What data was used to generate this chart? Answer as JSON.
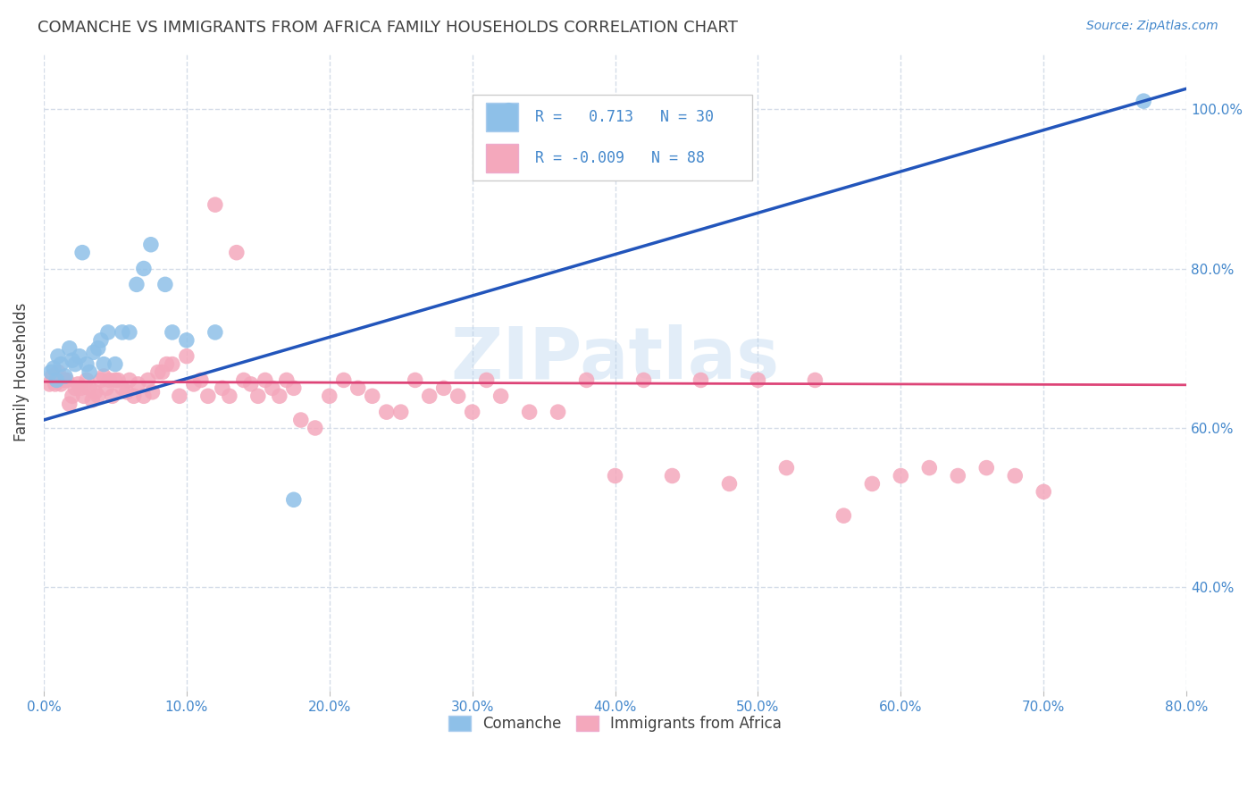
{
  "title": "COMANCHE VS IMMIGRANTS FROM AFRICA FAMILY HOUSEHOLDS CORRELATION CHART",
  "source": "Source: ZipAtlas.com",
  "ylabel": "Family Households",
  "xlim": [
    0.0,
    0.8
  ],
  "ylim": [
    0.27,
    1.07
  ],
  "blue_R": 0.713,
  "blue_N": 30,
  "pink_R": -0.009,
  "pink_N": 88,
  "blue_color": "#8ec0e8",
  "pink_color": "#f4a8bc",
  "blue_line_color": "#2255bb",
  "pink_line_color": "#dd4477",
  "watermark_color": "#b8d4ee",
  "title_color": "#404040",
  "axis_color": "#4488cc",
  "background_color": "#ffffff",
  "grid_color": "#d4dce8",
  "blue_points_x": [
    0.005,
    0.007,
    0.009,
    0.01,
    0.012,
    0.015,
    0.018,
    0.02,
    0.022,
    0.025,
    0.027,
    0.03,
    0.032,
    0.035,
    0.038,
    0.04,
    0.042,
    0.045,
    0.05,
    0.055,
    0.06,
    0.065,
    0.07,
    0.075,
    0.085,
    0.09,
    0.1,
    0.12,
    0.175,
    0.77
  ],
  "blue_points_y": [
    0.67,
    0.675,
    0.66,
    0.69,
    0.68,
    0.665,
    0.7,
    0.685,
    0.68,
    0.69,
    0.82,
    0.68,
    0.67,
    0.695,
    0.7,
    0.71,
    0.68,
    0.72,
    0.68,
    0.72,
    0.72,
    0.78,
    0.8,
    0.83,
    0.78,
    0.72,
    0.71,
    0.72,
    0.51,
    1.01
  ],
  "pink_points_x": [
    0.004,
    0.006,
    0.008,
    0.01,
    0.012,
    0.014,
    0.016,
    0.018,
    0.02,
    0.022,
    0.024,
    0.026,
    0.028,
    0.03,
    0.032,
    0.034,
    0.036,
    0.038,
    0.04,
    0.042,
    0.044,
    0.046,
    0.048,
    0.05,
    0.052,
    0.055,
    0.058,
    0.06,
    0.063,
    0.066,
    0.07,
    0.073,
    0.076,
    0.08,
    0.083,
    0.086,
    0.09,
    0.095,
    0.1,
    0.105,
    0.11,
    0.115,
    0.12,
    0.125,
    0.13,
    0.135,
    0.14,
    0.145,
    0.15,
    0.155,
    0.16,
    0.165,
    0.17,
    0.175,
    0.18,
    0.19,
    0.2,
    0.21,
    0.22,
    0.23,
    0.24,
    0.25,
    0.26,
    0.27,
    0.28,
    0.29,
    0.3,
    0.31,
    0.32,
    0.34,
    0.36,
    0.38,
    0.4,
    0.42,
    0.44,
    0.46,
    0.48,
    0.5,
    0.52,
    0.54,
    0.56,
    0.58,
    0.6,
    0.62,
    0.64,
    0.66,
    0.68,
    0.7
  ],
  "pink_points_y": [
    0.655,
    0.665,
    0.655,
    0.67,
    0.655,
    0.66,
    0.66,
    0.63,
    0.64,
    0.65,
    0.655,
    0.65,
    0.64,
    0.66,
    0.65,
    0.635,
    0.645,
    0.64,
    0.66,
    0.665,
    0.65,
    0.66,
    0.64,
    0.66,
    0.66,
    0.65,
    0.645,
    0.66,
    0.64,
    0.655,
    0.64,
    0.66,
    0.645,
    0.67,
    0.67,
    0.68,
    0.68,
    0.64,
    0.69,
    0.655,
    0.66,
    0.64,
    0.88,
    0.65,
    0.64,
    0.82,
    0.66,
    0.655,
    0.64,
    0.66,
    0.65,
    0.64,
    0.66,
    0.65,
    0.61,
    0.6,
    0.64,
    0.66,
    0.65,
    0.64,
    0.62,
    0.62,
    0.66,
    0.64,
    0.65,
    0.64,
    0.62,
    0.66,
    0.64,
    0.62,
    0.62,
    0.66,
    0.54,
    0.66,
    0.54,
    0.66,
    0.53,
    0.66,
    0.55,
    0.66,
    0.49,
    0.53,
    0.54,
    0.55,
    0.54,
    0.55,
    0.54,
    0.52
  ]
}
